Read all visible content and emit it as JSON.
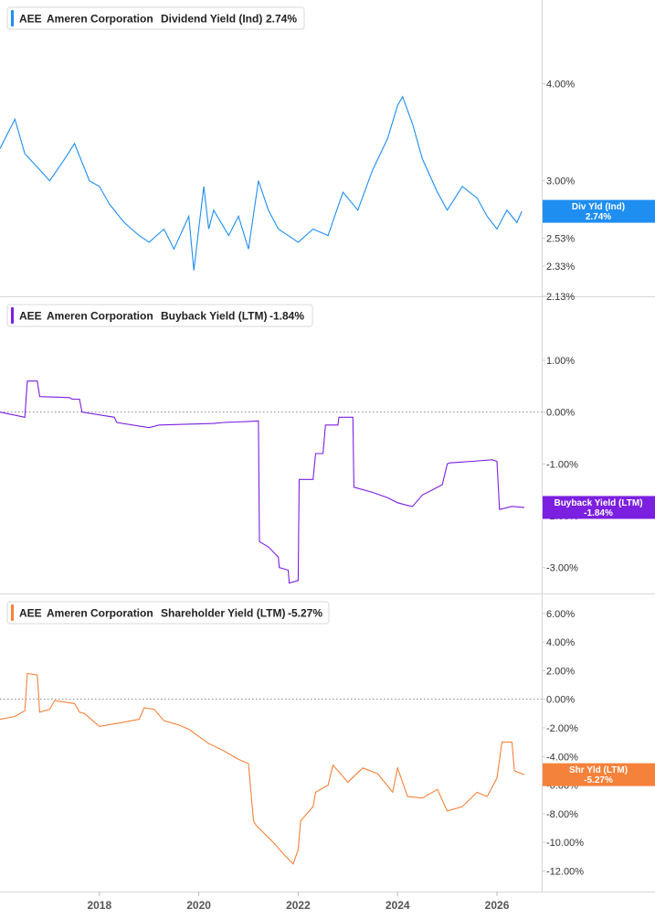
{
  "chart_data": [
    {
      "type": "line",
      "legend": {
        "ticker": "AEE",
        "company": "Ameren Corporation",
        "metric": "Dividend Yield (Ind)",
        "value": "2.74%"
      },
      "color": "#1f8ef1",
      "y_scale": "log",
      "ylim": [
        2.13,
        4.6
      ],
      "y_ticks": [
        "4.00%",
        "3.00%",
        "2.53%",
        "2.33%",
        "2.13%"
      ],
      "y_tick_values": [
        4.0,
        3.0,
        2.53,
        2.33,
        2.13
      ],
      "tag": {
        "label": "Div Yld (Ind)",
        "value": "2.74%",
        "y": 2.74
      },
      "series": [
        {
          "x": [
            2016.0,
            2016.3,
            2016.5,
            2016.8,
            2017.0,
            2017.3,
            2017.5,
            2017.8,
            2018.0,
            2018.2,
            2018.5,
            2018.8,
            2019.0,
            2019.3,
            2019.5,
            2019.8,
            2019.9,
            2020.1,
            2020.2,
            2020.3,
            2020.6,
            2020.8,
            2021.0,
            2021.2,
            2021.4,
            2021.6,
            2021.8,
            2022.0,
            2022.3,
            2022.6,
            2022.9,
            2023.2,
            2023.5,
            2023.8,
            2024.0,
            2024.1,
            2024.3,
            2024.5,
            2024.8,
            2025.0,
            2025.3,
            2025.6,
            2025.8,
            2026.0,
            2026.2,
            2026.4,
            2026.5
          ],
          "y": [
            3.3,
            3.6,
            3.25,
            3.1,
            3.0,
            3.2,
            3.35,
            3.0,
            2.95,
            2.8,
            2.65,
            2.55,
            2.5,
            2.6,
            2.45,
            2.7,
            2.3,
            2.95,
            2.6,
            2.75,
            2.55,
            2.7,
            2.45,
            3.0,
            2.75,
            2.6,
            2.55,
            2.5,
            2.6,
            2.55,
            2.9,
            2.75,
            3.1,
            3.4,
            3.75,
            3.85,
            3.55,
            3.2,
            2.9,
            2.75,
            2.95,
            2.85,
            2.7,
            2.6,
            2.75,
            2.65,
            2.74
          ]
        }
      ]
    },
    {
      "type": "line",
      "legend": {
        "ticker": "AEE",
        "company": "Ameren Corporation",
        "metric": "Buyback Yield (LTM)",
        "value": "-1.84%"
      },
      "color": "#7b1fe0",
      "ylim": [
        -3.5,
        1.6
      ],
      "y_ticks": [
        "1.00%",
        "0.00%",
        "-1.00%",
        "-2.00%",
        "-3.00%"
      ],
      "y_tick_values": [
        1.0,
        0.0,
        -1.0,
        -2.0,
        -3.0
      ],
      "zero_line": 0,
      "tag": {
        "label": "Buyback Yield (LTM)",
        "value": "-1.84%",
        "y": -1.84
      },
      "series": [
        {
          "x": [
            2016.0,
            2016.5,
            2016.55,
            2016.75,
            2016.8,
            2017.4,
            2017.45,
            2017.6,
            2017.65,
            2018.3,
            2018.35,
            2019.0,
            2019.2,
            2020.3,
            2020.5,
            2021.0,
            2021.2,
            2021.22,
            2021.4,
            2021.6,
            2021.62,
            2021.8,
            2021.82,
            2022.0,
            2022.02,
            2022.3,
            2022.35,
            2022.5,
            2022.55,
            2022.8,
            2022.82,
            2023.1,
            2023.12,
            2023.5,
            2023.8,
            2024.0,
            2024.2,
            2024.3,
            2024.5,
            2024.7,
            2024.9,
            2025.0,
            2025.05,
            2025.5,
            2025.9,
            2026.0,
            2026.05,
            2026.3,
            2026.55
          ],
          "y": [
            0.0,
            -0.1,
            0.6,
            0.6,
            0.3,
            0.28,
            0.25,
            0.25,
            0.0,
            -0.1,
            -0.2,
            -0.3,
            -0.25,
            -0.22,
            -0.2,
            -0.18,
            -0.17,
            -2.5,
            -2.6,
            -2.8,
            -3.0,
            -3.05,
            -3.3,
            -3.25,
            -1.3,
            -1.3,
            -0.8,
            -0.8,
            -0.25,
            -0.25,
            -0.1,
            -0.1,
            -1.45,
            -1.55,
            -1.65,
            -1.75,
            -1.8,
            -1.82,
            -1.6,
            -1.5,
            -1.4,
            -1.0,
            -0.98,
            -0.95,
            -0.92,
            -0.95,
            -1.88,
            -1.82,
            -1.84
          ]
        }
      ]
    },
    {
      "type": "line",
      "legend": {
        "ticker": "AEE",
        "company": "Ameren Corporation",
        "metric": "Shareholder Yield (LTM)",
        "value": "-5.27%"
      },
      "color": "#f5823a",
      "ylim": [
        -12.8,
        7.2
      ],
      "y_ticks": [
        "6.00%",
        "4.00%",
        "2.00%",
        "0.00%",
        "-2.00%",
        "-4.00%",
        "-6.00%",
        "-8.00%",
        "-10.00%",
        "-12.00%"
      ],
      "y_tick_values": [
        6,
        4,
        2,
        0,
        -2,
        -4,
        -6,
        -8,
        -10,
        -12
      ],
      "zero_line": 0,
      "tag": {
        "label": "Shr Yld (LTM)",
        "value": "-5.27%",
        "y": -5.27
      },
      "x_ticks": [
        "2018",
        "2020",
        "2022",
        "2024",
        "2026"
      ],
      "x_tick_values": [
        2018,
        2020,
        2022,
        2024,
        2026
      ],
      "xlim": [
        2016.0,
        2026.9
      ],
      "series": [
        {
          "x": [
            2016.0,
            2016.3,
            2016.5,
            2016.55,
            2016.75,
            2016.8,
            2017.0,
            2017.1,
            2017.5,
            2017.6,
            2017.7,
            2018.0,
            2018.5,
            2018.8,
            2018.9,
            2019.1,
            2019.3,
            2019.6,
            2019.8,
            2020.2,
            2020.5,
            2020.8,
            2021.0,
            2021.1,
            2021.15,
            2021.5,
            2021.7,
            2021.9,
            2022.0,
            2022.05,
            2022.3,
            2022.35,
            2022.6,
            2022.7,
            2023.0,
            2023.3,
            2023.6,
            2023.9,
            2024.0,
            2024.2,
            2024.5,
            2024.8,
            2025.0,
            2025.3,
            2025.6,
            2025.8,
            2026.0,
            2026.1,
            2026.3,
            2026.35,
            2026.55
          ],
          "y": [
            -1.4,
            -1.2,
            -0.8,
            1.8,
            1.7,
            -0.9,
            -0.7,
            -0.1,
            -0.3,
            -0.9,
            -1.0,
            -1.9,
            -1.6,
            -1.4,
            -0.6,
            -0.7,
            -1.5,
            -1.8,
            -2.1,
            -3.1,
            -3.6,
            -4.2,
            -4.5,
            -8.5,
            -8.8,
            -10.0,
            -10.8,
            -11.5,
            -10.5,
            -8.5,
            -7.5,
            -6.5,
            -6.0,
            -4.6,
            -5.8,
            -4.8,
            -5.2,
            -6.5,
            -4.8,
            -6.8,
            -6.9,
            -6.3,
            -7.8,
            -7.5,
            -6.5,
            -6.8,
            -5.5,
            -3.0,
            -3.0,
            -5.0,
            -5.27
          ]
        }
      ]
    }
  ]
}
